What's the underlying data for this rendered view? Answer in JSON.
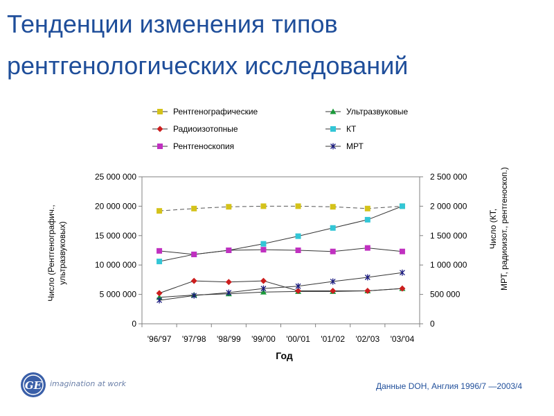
{
  "slide": {
    "title_line1": "Тенденции изменения типов",
    "title_line2": "рентгенологических исследований",
    "footnote": "Данные DOH, Англия 1996/7 —2003/4",
    "brand_tagline": "imagination at work",
    "logo_text": "GE"
  },
  "colors": {
    "title": "#1f4e9a",
    "axis": "#808080",
    "grid": "#c0c0c0"
  },
  "chart_data": {
    "type": "line",
    "xlabel": "Год",
    "ylabel_left": "Число (Рентгенографич., ультразвуковых)",
    "ylabel_right": "Число (КТ, МРТ, радиоизот., рентгеноскоп.)",
    "categories": [
      "'96/'97",
      "'97/'98",
      "'98/'99",
      "'99/'00",
      "'00/'01",
      "'01/'02",
      "'02/'03",
      "'03/'04"
    ],
    "y_left_ticks": [
      "0",
      "5 000 000",
      "10 000 000",
      "15 000 000",
      "20 000 000",
      "25 000 000"
    ],
    "y_right_ticks": [
      "0",
      "500 000",
      "1 000 000",
      "1 500 000",
      "2 000 000",
      "2 500 000"
    ],
    "ylim_left": [
      0,
      25000000
    ],
    "ylim_right": [
      0,
      2500000
    ],
    "grid": false,
    "legend_placement": "top",
    "series": [
      {
        "name": "Рентгенографические",
        "axis": "left",
        "color": "#d4c21a",
        "marker": "square",
        "values": [
          19200000,
          19600000,
          19900000,
          20000000,
          20000000,
          19900000,
          19600000,
          20000000
        ]
      },
      {
        "name": "Ультразвуковые",
        "axis": "left",
        "color": "#1a9a3a",
        "marker": "triangle",
        "values": [
          4500000,
          4900000,
          5100000,
          5400000,
          5500000,
          5500000,
          5600000,
          6000000
        ]
      },
      {
        "name": "Радиоизотопные",
        "axis": "right",
        "color": "#cc1e1e",
        "marker": "diamond",
        "values": [
          520000,
          730000,
          710000,
          730000,
          560000,
          560000,
          560000,
          600000
        ]
      },
      {
        "name": "КТ",
        "axis": "right",
        "color": "#33c6d6",
        "marker": "square",
        "values": [
          1060000,
          1180000,
          1250000,
          1360000,
          1490000,
          1630000,
          1770000,
          2000000
        ]
      },
      {
        "name": "Рентгеноскопия",
        "axis": "right",
        "color": "#c030c0",
        "marker": "square",
        "values": [
          1240000,
          1180000,
          1250000,
          1260000,
          1250000,
          1230000,
          1290000,
          1230000
        ]
      },
      {
        "name": "МРТ",
        "axis": "right",
        "color": "#1a1a80",
        "marker": "star",
        "values": [
          400000,
          480000,
          530000,
          600000,
          640000,
          720000,
          790000,
          870000
        ]
      }
    ]
  }
}
